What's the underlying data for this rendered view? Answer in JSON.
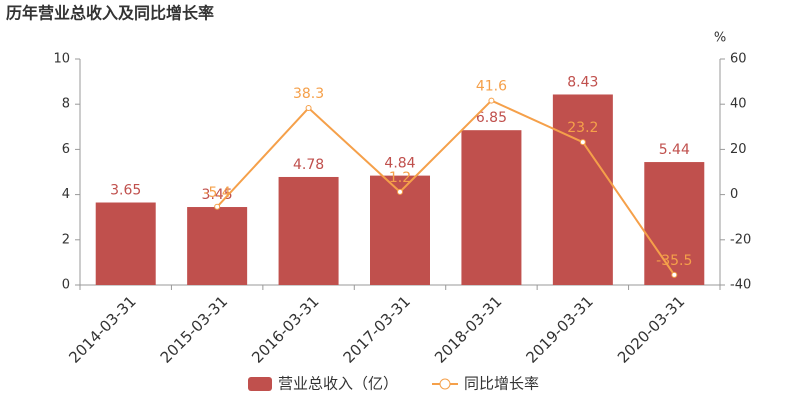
{
  "chart_data": {
    "type": "bar-line",
    "title": "历年营业总收入及同比增长率",
    "categories": [
      "2014-03-31",
      "2015-03-31",
      "2016-03-31",
      "2017-03-31",
      "2018-03-31",
      "2019-03-31",
      "2020-03-31"
    ],
    "series": [
      {
        "name": "营业总收入（亿）",
        "type": "bar",
        "color": "#c0504d",
        "values": [
          3.65,
          3.45,
          4.78,
          4.84,
          6.85,
          8.43,
          5.44
        ]
      },
      {
        "name": "同比增长率",
        "type": "line",
        "axis": "y2",
        "color": "#f5a04a",
        "values": [
          null,
          -5.4,
          38.3,
          1.2,
          41.6,
          23.2,
          -35.5
        ]
      }
    ],
    "ylim": [
      0,
      10
    ],
    "yticks": [
      0,
      2,
      4,
      6,
      8,
      10
    ],
    "y2lim": [
      -40,
      60
    ],
    "y2ticks": [
      -40,
      -20,
      0,
      20,
      40,
      60
    ],
    "y2_label": "%",
    "grid": false
  }
}
